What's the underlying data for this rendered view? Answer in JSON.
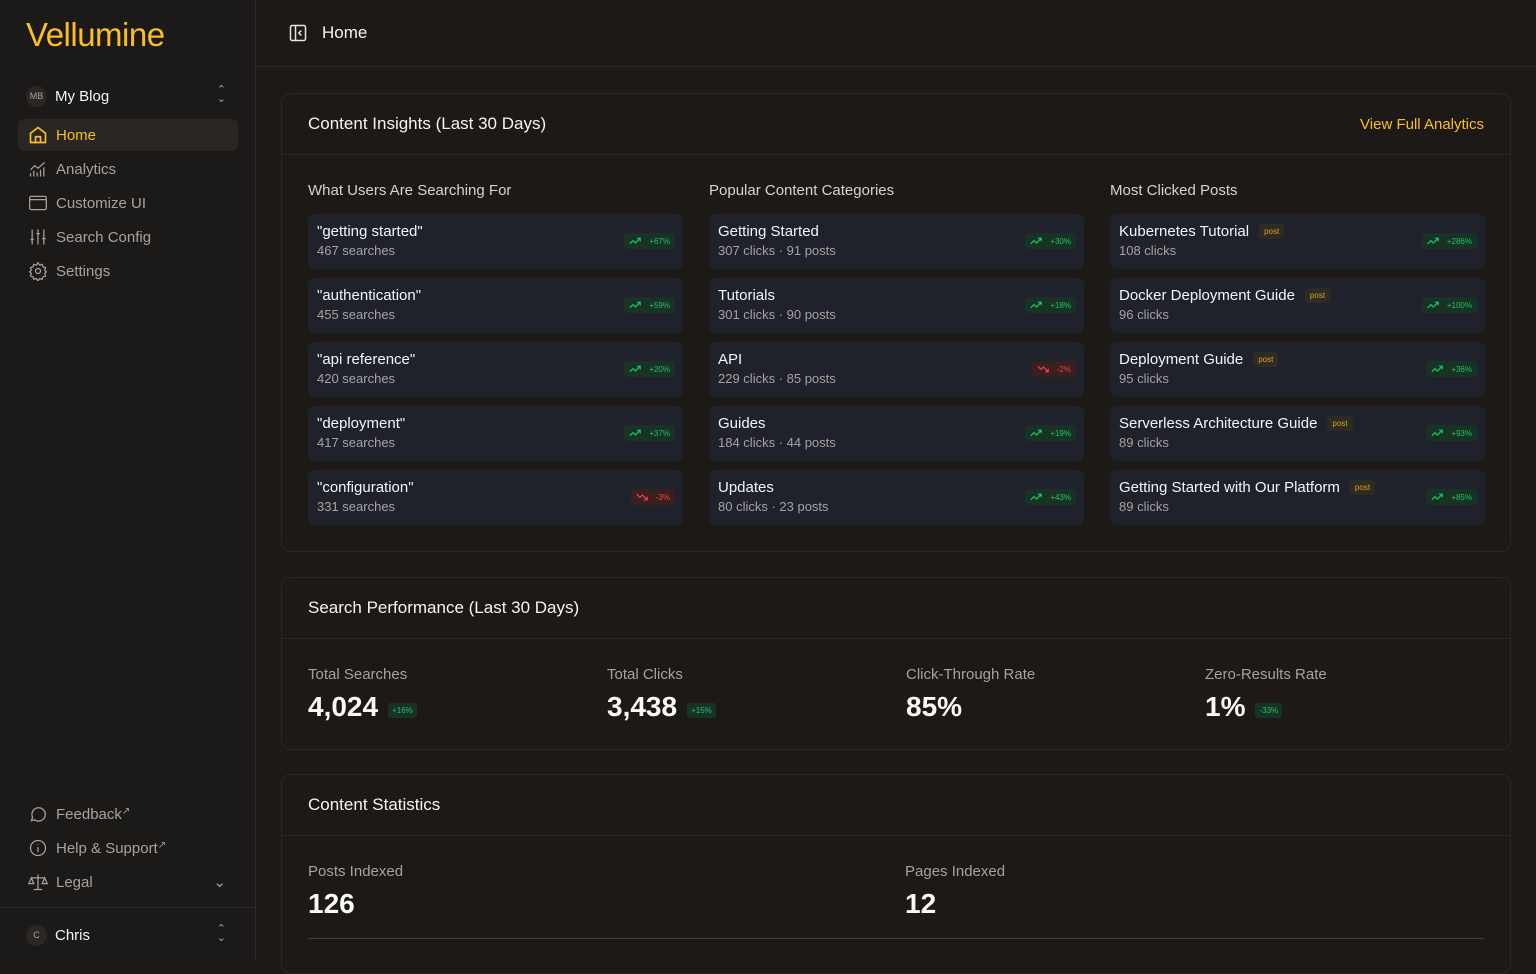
{
  "app": {
    "logo": "Vellumine"
  },
  "sidebar": {
    "workspace": {
      "initials": "MB",
      "name": "My Blog"
    },
    "items": [
      {
        "label": "Home",
        "icon": "home-icon"
      },
      {
        "label": "Analytics",
        "icon": "analytics-icon"
      },
      {
        "label": "Customize UI",
        "icon": "browser-icon"
      },
      {
        "label": "Search Config",
        "icon": "sliders-icon"
      },
      {
        "label": "Settings",
        "icon": "gear-icon"
      }
    ],
    "bottom": [
      {
        "label": "Feedback",
        "icon": "message-icon"
      },
      {
        "label": "Help & Support",
        "icon": "info-icon"
      },
      {
        "label": "Legal",
        "icon": "scale-icon"
      }
    ],
    "user": {
      "initial": "C",
      "name": "Chris"
    }
  },
  "header": {
    "title": "Home"
  },
  "insights": {
    "title": "Content Insights (Last 30 Days)",
    "link": "View Full Analytics",
    "searches": {
      "title": "What Users Are Searching For",
      "items": [
        {
          "t": "\"getting started\"",
          "s": "467 searches",
          "b": "+67%",
          "dir": "up"
        },
        {
          "t": "\"authentication\"",
          "s": "455 searches",
          "b": "+59%",
          "dir": "up"
        },
        {
          "t": "\"api reference\"",
          "s": "420 searches",
          "b": "+20%",
          "dir": "up"
        },
        {
          "t": "\"deployment\"",
          "s": "417 searches",
          "b": "+37%",
          "dir": "up"
        },
        {
          "t": "\"configuration\"",
          "s": "331 searches",
          "b": "-3%",
          "dir": "down"
        }
      ]
    },
    "categories": {
      "title": "Popular Content Categories",
      "items": [
        {
          "t": "Getting Started",
          "s": "307 clicks · 91 posts",
          "b": "+30%",
          "dir": "up"
        },
        {
          "t": "Tutorials",
          "s": "301 clicks · 90 posts",
          "b": "+18%",
          "dir": "up"
        },
        {
          "t": "API",
          "s": "229 clicks · 85 posts",
          "b": "-2%",
          "dir": "down"
        },
        {
          "t": "Guides",
          "s": "184 clicks · 44 posts",
          "b": "+19%",
          "dir": "up"
        },
        {
          "t": "Updates",
          "s": "80 clicks · 23 posts",
          "b": "+43%",
          "dir": "up"
        }
      ]
    },
    "posts": {
      "title": "Most Clicked Posts",
      "items": [
        {
          "t": "Kubernetes Tutorial",
          "tag": "post",
          "s": "108 clicks",
          "b": "+286%",
          "dir": "up"
        },
        {
          "t": "Docker Deployment Guide",
          "tag": "post",
          "s": "96 clicks",
          "b": "+100%",
          "dir": "up"
        },
        {
          "t": "Deployment Guide",
          "tag": "post",
          "s": "95 clicks",
          "b": "+36%",
          "dir": "up"
        },
        {
          "t": "Serverless Architecture Guide",
          "tag": "post",
          "s": "89 clicks",
          "b": "+93%",
          "dir": "up"
        },
        {
          "t": "Getting Started with Our Platform",
          "tag": "post",
          "s": "89 clicks",
          "b": "+85%",
          "dir": "up"
        }
      ]
    }
  },
  "performance": {
    "title": "Search Performance (Last 30 Days)",
    "stats": [
      {
        "label": "Total Searches",
        "value": "4,024",
        "badge": "+16%"
      },
      {
        "label": "Total Clicks",
        "value": "3,438",
        "badge": "+15%"
      },
      {
        "label": "Click-Through Rate",
        "value": "85%"
      },
      {
        "label": "Zero-Results Rate",
        "value": "1%",
        "badge": "-33%"
      }
    ]
  },
  "statistics": {
    "title": "Content Statistics",
    "stats": [
      {
        "label": "Posts Indexed",
        "value": "126"
      },
      {
        "label": "Pages Indexed",
        "value": "12"
      }
    ]
  }
}
